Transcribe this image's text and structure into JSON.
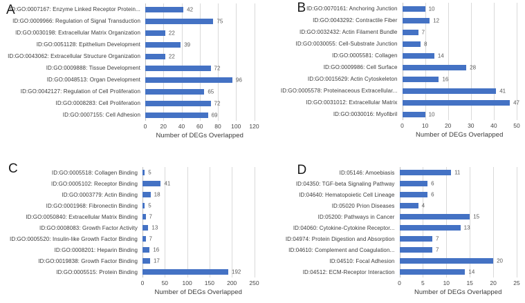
{
  "figure_title": "",
  "chart_data": [
    {
      "panel": "A",
      "type": "bar",
      "orientation": "horizontal",
      "categories": [
        "ID:GO:0007167: Enzyme Linked Receptor Protein...",
        "ID:GO:0009966: Regulation of Signal Transduction",
        "ID:GO:0030198: Extracellular Matrix Organization",
        "ID:GO:0051128: Epithelium Development",
        "ID:GO:0043062: Extracellular Structure Organization",
        "ID:GO:0009888: Tissue Development",
        "ID:GO:0048513: Organ Development",
        "ID:GO:0042127: Regulation of Cell Proliferation",
        "ID:GO:0008283: Cell Proliferation",
        "ID:GO:0007155: Cell Adhesion"
      ],
      "values": [
        42,
        75,
        22,
        39,
        22,
        72,
        96,
        65,
        72,
        69
      ],
      "xlabel": "Number of DEGs Overlapped",
      "xlim": [
        0,
        120
      ],
      "xticks": [
        0,
        20,
        40,
        60,
        80,
        100,
        120
      ],
      "grid": true,
      "bar_color": "#4472C4"
    },
    {
      "panel": "B",
      "type": "bar",
      "orientation": "horizontal",
      "categories": [
        "ID:GO:0070161: Anchoring Junction",
        "ID:GO:0043292: Contractile Fiber",
        "ID:GO:0032432: Actin Filament Bundle",
        "ID:GO:0030055: Cell-Substrate Junction",
        "ID:GO:0005581: Collagen",
        "ID:GO:0009986: Cell Surface",
        "ID:GO:0015629: Actin Cytoskeleton",
        "ID:GO:0005578: Proteinaceous Extracellular...",
        "ID:GO:0031012: Extracellular Matrix",
        "ID:GO:0030016: Myofibril"
      ],
      "values": [
        10,
        12,
        7,
        8,
        14,
        28,
        16,
        41,
        47,
        10
      ],
      "xlabel": "Number of DEGs Overlapped",
      "xlim": [
        0,
        50
      ],
      "xticks": [
        0,
        10,
        20,
        30,
        40,
        50
      ],
      "grid": true,
      "bar_color": "#4472C4"
    },
    {
      "panel": "C",
      "type": "bar",
      "orientation": "horizontal",
      "categories": [
        "ID:GO:0005518: Collagen Binding",
        "ID:GO:0005102: Receptor Binding",
        "ID:GO:0003779: Actin Binding",
        "ID:GO:0001968: Fibronectin Binding",
        "ID:GO:0050840: Extracellular Matrix Binding",
        "ID:GO:0008083: Growth Factor Activity",
        "ID:GO:0005520: Insulin-like Growth Factor Binding",
        "ID:GO:0008201: Heparin Binding",
        "ID:GO:0019838: Growth Factor Binding",
        "ID:GO:0005515: Protein Binding"
      ],
      "values": [
        5,
        41,
        18,
        5,
        7,
        13,
        7,
        16,
        17,
        192
      ],
      "xlabel": "Number of DEGs Overlapped",
      "xlim": [
        0,
        250
      ],
      "xticks": [
        0,
        50,
        100,
        150,
        200,
        250
      ],
      "grid": true,
      "bar_color": "#4472C4"
    },
    {
      "panel": "D",
      "type": "bar",
      "orientation": "horizontal",
      "categories": [
        "ID:05146: Amoebiasis",
        "ID:04350: TGF-beta Signaling Pathway",
        "ID:04640: Hematopoietic Cell Lineage",
        "ID:05020 Prion Diseases",
        "ID:05200: Pathways in Cancer",
        "ID:04060: Cytokine-Cytokine Receptor...",
        "ID:04974: Protein Digestion and Absorption",
        "ID:04610: Complement and Coagulation...",
        "ID:04510: Focal Adhesion",
        "ID:04512: ECM-Receptor Interaction"
      ],
      "values": [
        11,
        6,
        6,
        4,
        15,
        13,
        7,
        7,
        20,
        14
      ],
      "xlabel": "Number of DEGs Overlapped",
      "xlim": [
        0,
        25
      ],
      "xticks": [
        0,
        5,
        10,
        15,
        20,
        25
      ],
      "grid": true,
      "bar_color": "#4472C4"
    }
  ]
}
